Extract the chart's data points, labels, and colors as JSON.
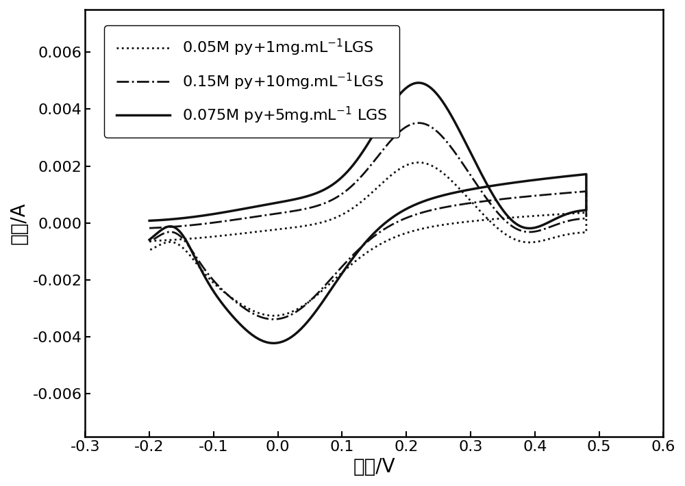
{
  "xlabel": "电压/V",
  "ylabel": "电流/A",
  "xlim": [
    -0.3,
    0.6
  ],
  "ylim": [
    -0.0075,
    0.0075
  ],
  "xticks": [
    -0.3,
    -0.2,
    -0.1,
    0.0,
    0.1,
    0.2,
    0.3,
    0.4,
    0.5,
    0.6
  ],
  "yticks": [
    -0.006,
    -0.004,
    -0.002,
    0.0,
    0.002,
    0.004,
    0.006
  ],
  "legend": [
    {
      "label": "0.05M py+1mg.mL$^{-1}$LGS",
      "linestyle": "dotted",
      "linewidth": 2.0,
      "color": "#111111"
    },
    {
      "label": "0.15M py+10mg.mL$^{-1}$LGS",
      "linestyle": "dashdot",
      "linewidth": 2.0,
      "color": "#111111"
    },
    {
      "label": "0.075M py+5mg.mL$^{-1}$ LGS",
      "linestyle": "solid",
      "linewidth": 2.5,
      "color": "#111111"
    }
  ],
  "background_color": "#ffffff",
  "font_size_labels": 20,
  "font_size_ticks": 16,
  "font_size_legend": 16
}
